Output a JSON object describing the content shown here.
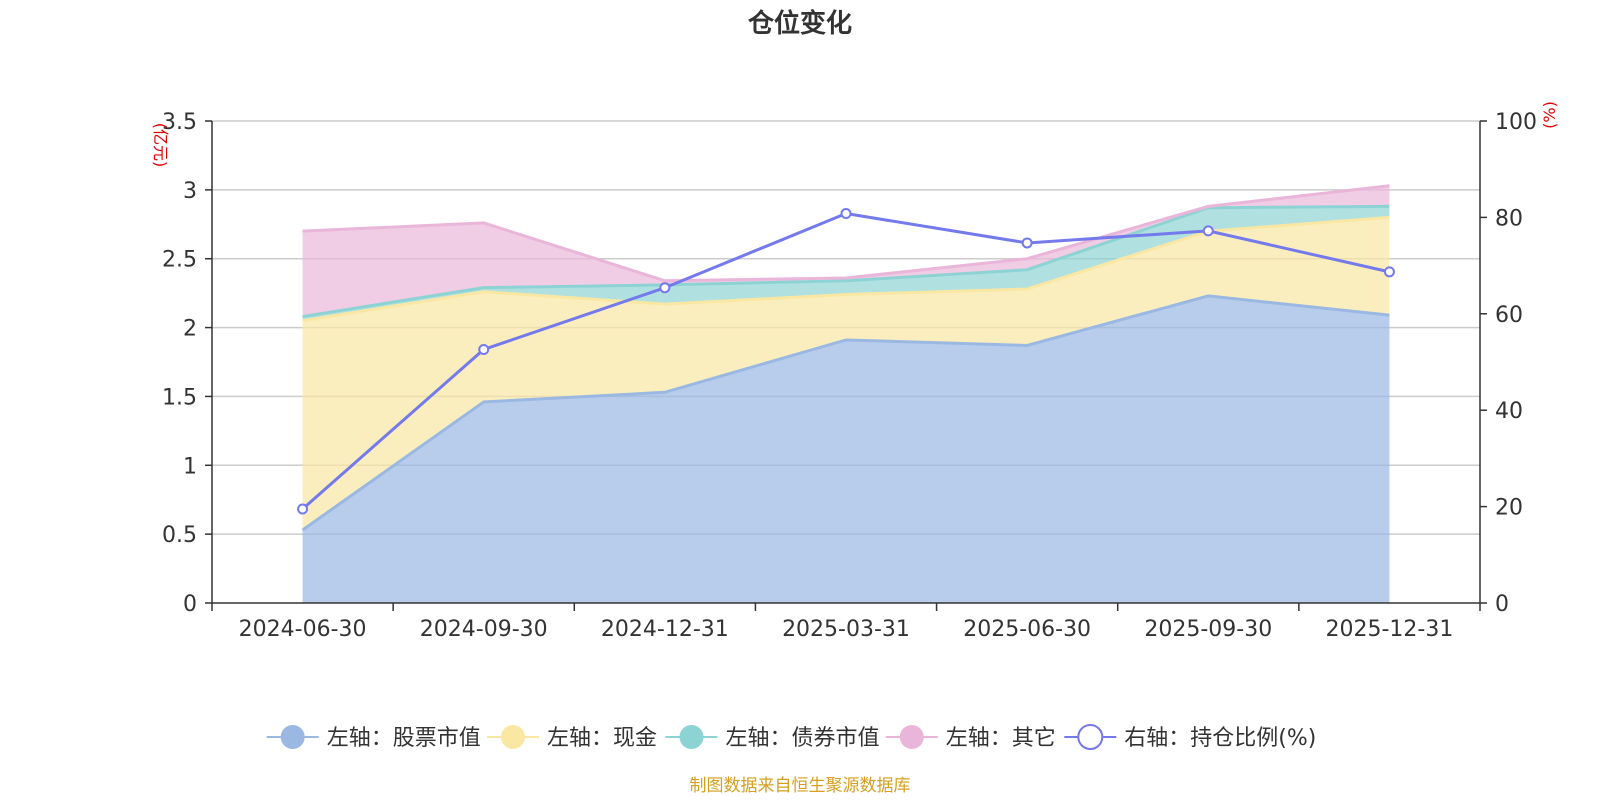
{
  "chart_data": {
    "type": "area",
    "title": "仓位变化",
    "left_unit": "(亿元)",
    "right_unit": "(%)",
    "categories": [
      "2024-06-30",
      "2024-09-30",
      "2024-12-31",
      "2025-03-31",
      "2025-06-30",
      "2025-09-30",
      "2025-12-31"
    ],
    "left_axis": {
      "min": 0,
      "max": 3.5,
      "ticks": [
        "0",
        "0.5",
        "1",
        "1.5",
        "2",
        "2.5",
        "3",
        "3.5"
      ]
    },
    "right_axis": {
      "min": 0,
      "max": 100,
      "ticks": [
        "0",
        "20",
        "40",
        "60",
        "80",
        "100"
      ]
    },
    "stacked_series": [
      {
        "name": "左轴：股票市值",
        "values": [
          0.53,
          1.46,
          1.53,
          1.91,
          1.87,
          2.23,
          2.09
        ],
        "color": "#9ab8e2"
      },
      {
        "name": "左轴：现金",
        "values": [
          1.52,
          0.8,
          0.64,
          0.33,
          0.41,
          0.47,
          0.71
        ],
        "color": "#f9e7a3"
      },
      {
        "name": "左轴：债券市值",
        "values": [
          0.03,
          0.03,
          0.14,
          0.1,
          0.14,
          0.17,
          0.08
        ],
        "color": "#8ed3d3"
      },
      {
        "name": "左轴：其它",
        "values": [
          0.62,
          0.47,
          0.03,
          0.02,
          0.08,
          0.01,
          0.15
        ],
        "color": "#e9b6da"
      }
    ],
    "line_series": {
      "name": "右轴：持仓比例(%)",
      "values": [
        19.5,
        52.6,
        65.4,
        80.8,
        74.7,
        77.2,
        68.7
      ],
      "color": "#7479eb"
    },
    "source_note": "制图数据来自恒生聚源数据库"
  }
}
